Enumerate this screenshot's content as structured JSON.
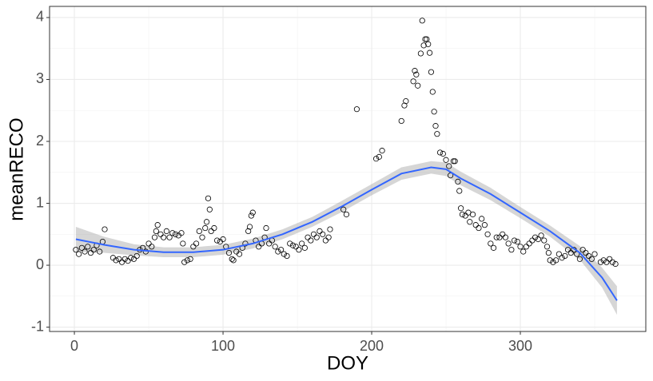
{
  "chart_data": {
    "type": "scatter",
    "x_label": "DOY",
    "y_label": "meanRECO",
    "xlim": [
      -16.7,
      384.4
    ],
    "ylim": [
      -1.07,
      4.18
    ],
    "xticks": [
      0,
      100,
      200,
      300
    ],
    "yticks": [
      -1,
      0,
      1,
      2,
      3,
      4
    ],
    "x_minor_ticks": [
      50,
      150,
      250,
      350
    ],
    "y_minor_ticks": [
      -0.5,
      0.5,
      1.5,
      2.5,
      3.5
    ],
    "grid": true,
    "point_color": "#000000",
    "x": [
      1,
      3,
      5,
      7,
      9,
      11,
      13,
      15,
      17,
      19,
      20.4,
      26,
      28,
      30,
      32,
      34,
      36,
      38,
      40,
      42,
      44,
      46,
      48,
      50,
      52,
      54,
      55,
      56,
      58,
      60,
      62,
      64,
      66,
      68,
      70,
      72,
      73,
      74,
      76,
      78,
      80,
      82,
      84,
      86,
      88,
      89,
      90,
      91,
      92,
      94,
      96,
      98,
      100,
      102,
      104,
      106,
      107,
      109,
      111,
      113,
      115,
      117,
      118,
      119,
      120,
      122,
      124,
      126,
      128,
      129,
      131,
      133,
      135,
      137,
      139,
      141,
      143,
      145,
      147,
      149,
      151,
      153,
      155,
      157,
      159,
      161,
      163,
      165,
      167,
      169,
      171,
      172,
      181,
      183,
      190,
      203,
      205,
      207,
      220,
      222,
      223,
      228,
      229,
      230,
      231,
      233,
      234,
      235,
      236,
      237,
      238,
      239,
      240,
      241,
      242,
      243,
      244,
      246,
      248,
      250,
      252,
      253,
      255,
      256,
      258,
      259,
      260,
      261,
      263,
      265,
      266,
      268,
      270,
      272,
      274,
      276,
      278,
      280,
      282,
      284,
      286,
      288,
      290,
      292,
      294,
      296,
      298,
      300,
      302,
      304,
      306,
      308,
      310,
      312,
      314,
      316,
      318,
      319,
      320,
      322,
      324,
      326,
      328,
      330,
      332,
      334,
      336,
      338,
      340,
      342,
      344,
      346,
      348,
      350,
      354,
      356,
      358,
      360,
      362,
      364
    ],
    "y": [
      0.25,
      0.18,
      0.28,
      0.22,
      0.3,
      0.2,
      0.25,
      0.32,
      0.22,
      0.38,
      0.58,
      0.12,
      0.08,
      0.1,
      0.05,
      0.1,
      0.07,
      0.12,
      0.1,
      0.15,
      0.25,
      0.28,
      0.22,
      0.35,
      0.3,
      0.45,
      0.55,
      0.65,
      0.5,
      0.45,
      0.55,
      0.45,
      0.52,
      0.5,
      0.48,
      0.52,
      0.35,
      0.05,
      0.08,
      0.1,
      0.3,
      0.35,
      0.55,
      0.45,
      0.6,
      0.7,
      1.08,
      0.9,
      0.55,
      0.6,
      0.4,
      0.38,
      0.42,
      0.3,
      0.2,
      0.1,
      0.08,
      0.22,
      0.18,
      0.28,
      0.35,
      0.55,
      0.62,
      0.8,
      0.85,
      0.4,
      0.3,
      0.35,
      0.45,
      0.6,
      0.35,
      0.4,
      0.3,
      0.22,
      0.25,
      0.18,
      0.15,
      0.35,
      0.32,
      0.3,
      0.25,
      0.35,
      0.28,
      0.45,
      0.4,
      0.5,
      0.45,
      0.55,
      0.5,
      0.4,
      0.45,
      0.58,
      0.9,
      0.82,
      2.52,
      1.72,
      1.75,
      1.85,
      2.33,
      2.58,
      2.65,
      2.97,
      3.14,
      3.08,
      2.9,
      3.42,
      3.95,
      3.55,
      3.65,
      3.65,
      3.57,
      3.43,
      3.12,
      2.8,
      2.48,
      2.25,
      2.12,
      1.82,
      1.8,
      1.7,
      1.6,
      1.45,
      1.68,
      1.68,
      1.35,
      1.2,
      0.92,
      0.82,
      0.8,
      0.85,
      0.7,
      0.82,
      0.65,
      0.6,
      0.75,
      0.65,
      0.5,
      0.35,
      0.28,
      0.45,
      0.45,
      0.5,
      0.45,
      0.35,
      0.25,
      0.4,
      0.38,
      0.3,
      0.22,
      0.3,
      0.35,
      0.4,
      0.45,
      0.42,
      0.48,
      0.4,
      0.3,
      0.2,
      0.08,
      0.05,
      0.08,
      0.18,
      0.12,
      0.15,
      0.25,
      0.2,
      0.25,
      0.18,
      0.1,
      0.25,
      0.2,
      0.15,
      0.1,
      0.18,
      0.05,
      0.08,
      0.05,
      0.1,
      0.05,
      0.02
    ],
    "smooth": {
      "color": "#3366ff",
      "band_color": "#999999",
      "x": [
        1,
        20,
        40,
        60,
        80,
        100,
        120,
        140,
        160,
        180,
        200,
        220,
        240,
        250,
        260,
        280,
        300,
        320,
        340,
        355,
        365
      ],
      "values": [
        0.42,
        0.33,
        0.25,
        0.21,
        0.21,
        0.25,
        0.35,
        0.5,
        0.7,
        0.95,
        1.22,
        1.48,
        1.58,
        1.55,
        1.4,
        1.15,
        0.85,
        0.55,
        0.2,
        -0.2,
        -0.57
      ],
      "lower": [
        0.22,
        0.2,
        0.16,
        0.13,
        0.13,
        0.17,
        0.27,
        0.42,
        0.62,
        0.86,
        1.13,
        1.38,
        1.48,
        1.44,
        1.29,
        1.05,
        0.76,
        0.46,
        0.09,
        -0.36,
        -0.8
      ],
      "upper": [
        0.62,
        0.46,
        0.34,
        0.29,
        0.29,
        0.33,
        0.43,
        0.58,
        0.78,
        1.04,
        1.31,
        1.58,
        1.68,
        1.66,
        1.51,
        1.25,
        0.94,
        0.64,
        0.31,
        -0.04,
        -0.34
      ]
    }
  }
}
